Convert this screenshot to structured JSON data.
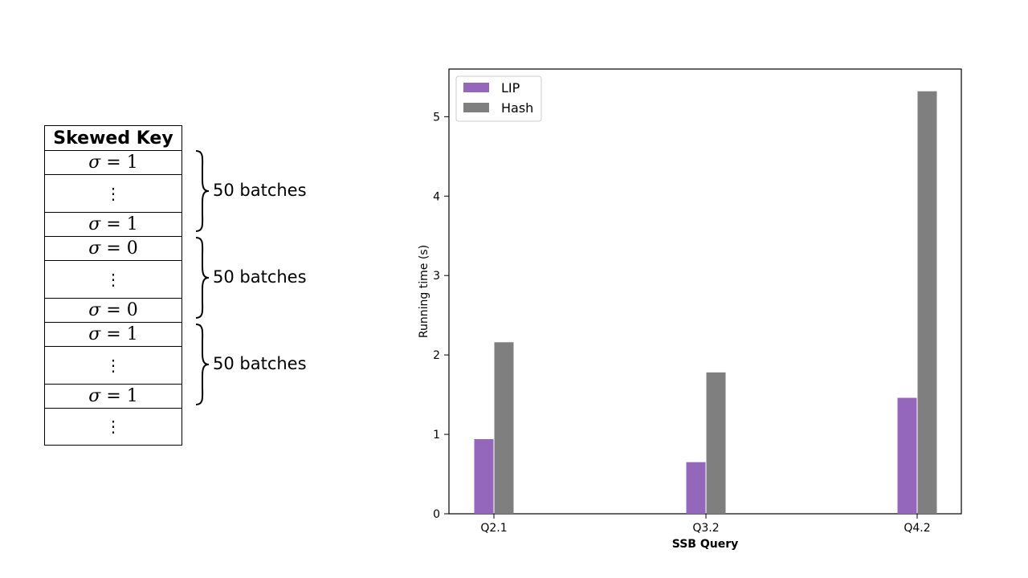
{
  "skew_table": {
    "header": "Skewed Key",
    "groups": [
      {
        "sigma_value": "1",
        "label": "50 batches"
      },
      {
        "sigma_value": "0",
        "label": "50 batches"
      },
      {
        "sigma_value": "1",
        "label": "50 batches"
      }
    ],
    "sigma_symbol": "σ",
    "equals": "=",
    "ellipsis": "⋮"
  },
  "chart_data": {
    "type": "bar",
    "categories": [
      "Q2.1",
      "Q3.2",
      "Q4.2"
    ],
    "series": [
      {
        "name": "LIP",
        "values": [
          0.94,
          0.65,
          1.46
        ],
        "color": "#9467bd"
      },
      {
        "name": "Hash",
        "values": [
          2.16,
          1.78,
          5.32
        ],
        "color": "#7f7f7f"
      }
    ],
    "xlabel": "SSB Query",
    "ylabel": "Running time (s)",
    "ylim": [
      0,
      5.6
    ],
    "yticks": [
      0,
      1,
      2,
      3,
      4,
      5
    ],
    "legend_position": "top-left",
    "grid": false
  }
}
